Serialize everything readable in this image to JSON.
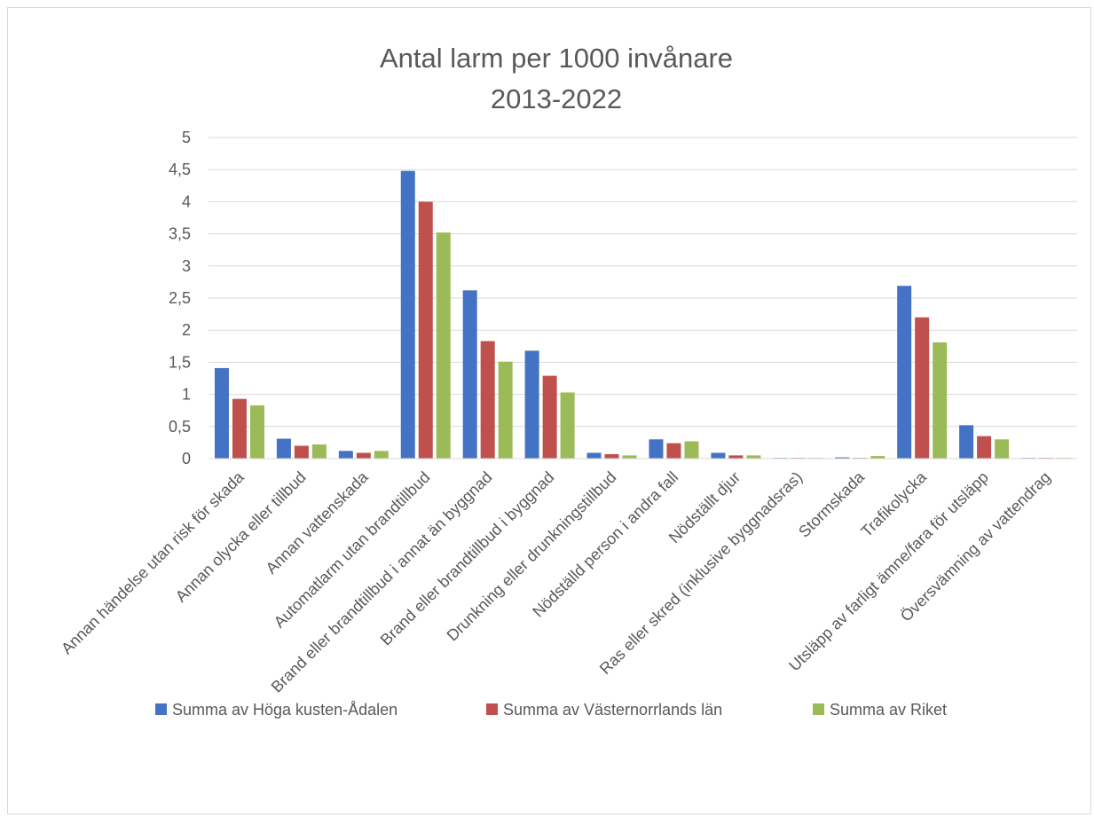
{
  "chart_data": {
    "type": "bar",
    "title": "Antal larm per 1000 invånare",
    "subtitle": "2013-2022",
    "ylim": [
      0,
      5
    ],
    "y_ticks": [
      "0",
      "0,5",
      "1",
      "1,5",
      "2",
      "2,5",
      "3",
      "3,5",
      "4",
      "4,5",
      "5"
    ],
    "grid": true,
    "legend_position": "bottom",
    "categories": [
      "Annan händelse utan risk för skada",
      "Annan olycka eller tillbud",
      "Annan vattenskada",
      "Automatlarm utan brandtillbud",
      "Brand eller brandtillbud i annat än byggnad",
      "Brand eller brandtillbud i byggnad",
      "Drunkning eller drunkningstillbud",
      "Nödställd person i andra fall",
      "Nödställt djur",
      "Ras eller skred (inklusive byggnadsras)",
      "Stormskada",
      "Trafikolycka",
      "Utsläpp av farligt ämne/fara för utsläpp",
      "Översvämning av vattendrag"
    ],
    "series": [
      {
        "name": "Summa av Höga kusten-Ådalen",
        "color": "#4472c4",
        "values": [
          1.41,
          0.31,
          0.12,
          4.48,
          2.62,
          1.68,
          0.09,
          0.3,
          0.09,
          0.01,
          0.02,
          2.69,
          0.52,
          0.01
        ]
      },
      {
        "name": "Summa av Västernorrlands län",
        "color": "#c0504d",
        "values": [
          0.93,
          0.2,
          0.09,
          4.0,
          1.83,
          1.29,
          0.07,
          0.24,
          0.05,
          0.01,
          0.01,
          2.2,
          0.35,
          0.01
        ]
      },
      {
        "name": "Summa av Riket",
        "color": "#9bbb59",
        "values": [
          0.83,
          0.22,
          0.12,
          3.52,
          1.51,
          1.03,
          0.05,
          0.27,
          0.05,
          0.01,
          0.04,
          1.81,
          0.3,
          0.01
        ]
      }
    ]
  }
}
